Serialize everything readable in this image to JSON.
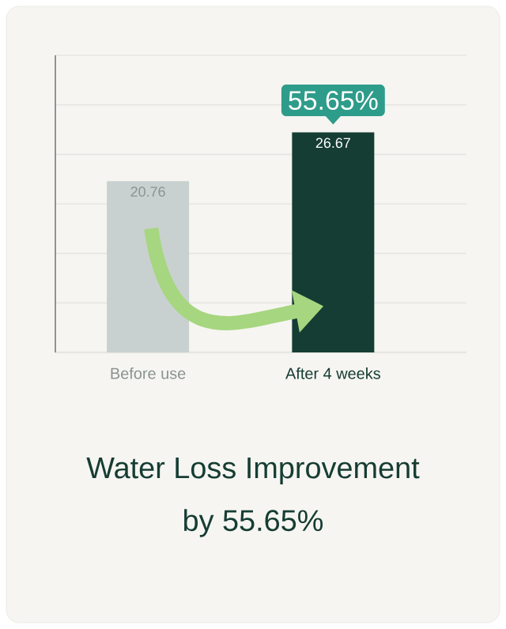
{
  "chart_data": {
    "type": "bar",
    "title": "Water Loss Improvement",
    "subtitle": "by 55.65%",
    "categories": [
      "Before use",
      "After 4 weeks"
    ],
    "values": [
      20.76,
      26.67
    ],
    "colors": [
      "#c8d1cf",
      "#163d33"
    ],
    "data_labels": true,
    "annotations": [
      "55.65%"
    ],
    "ylim": [
      0,
      36
    ],
    "yticks": [
      {
        "value": 0,
        "label": null
      },
      {
        "value": 6,
        "label": null
      },
      {
        "value": 12,
        "label": null
      },
      {
        "value": 18,
        "label": null
      },
      {
        "value": 24,
        "label": null
      },
      {
        "value": 30,
        "label": null
      },
      {
        "value": 36,
        "label": null
      }
    ],
    "tick_labels": "x",
    "grid": "y"
  }
}
